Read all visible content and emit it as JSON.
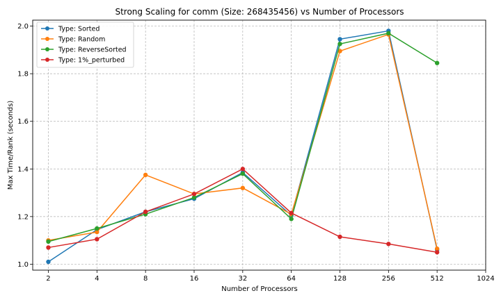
{
  "chart_data": {
    "type": "line",
    "title": "Strong Scaling for comm (Size: 268435456) vs Number of Processors",
    "xlabel": "Number of Processors",
    "ylabel": "Max Time/Rank (seconds)",
    "x_scale": "log2",
    "xlim": [
      1.6,
      1024
    ],
    "ylim": [
      0.975,
      2.025
    ],
    "x_ticks": [
      2,
      4,
      8,
      16,
      32,
      64,
      128,
      256,
      512,
      1024
    ],
    "y_ticks": [
      1.0,
      1.2,
      1.4,
      1.6,
      1.8,
      2.0
    ],
    "grid": true,
    "legend_position": "top-left",
    "series": [
      {
        "name": "Type: Sorted",
        "color": "#1f77b4",
        "x": [
          2,
          4,
          8,
          16,
          32,
          64,
          128,
          256,
          512
        ],
        "values": [
          1.01,
          1.145,
          1.22,
          1.275,
          1.385,
          1.205,
          1.945,
          1.98,
          1.06
        ]
      },
      {
        "name": "Type: Random",
        "color": "#ff7f0e",
        "x": [
          2,
          4,
          8,
          16,
          32,
          64,
          128,
          256,
          512
        ],
        "values": [
          1.1,
          1.135,
          1.375,
          1.295,
          1.32,
          1.21,
          1.895,
          1.965,
          1.065
        ]
      },
      {
        "name": "Type: ReverseSorted",
        "color": "#2ca02c",
        "x": [
          2,
          4,
          8,
          16,
          32,
          64,
          128,
          256,
          512
        ],
        "values": [
          1.095,
          1.15,
          1.21,
          1.28,
          1.38,
          1.19,
          1.925,
          1.97,
          1.845
        ]
      },
      {
        "name": "Type: 1%_perturbed",
        "color": "#d62728",
        "x": [
          2,
          4,
          8,
          16,
          32,
          64,
          128,
          256,
          512
        ],
        "values": [
          1.07,
          1.105,
          1.22,
          1.295,
          1.4,
          1.215,
          1.115,
          1.085,
          1.05
        ]
      }
    ]
  }
}
